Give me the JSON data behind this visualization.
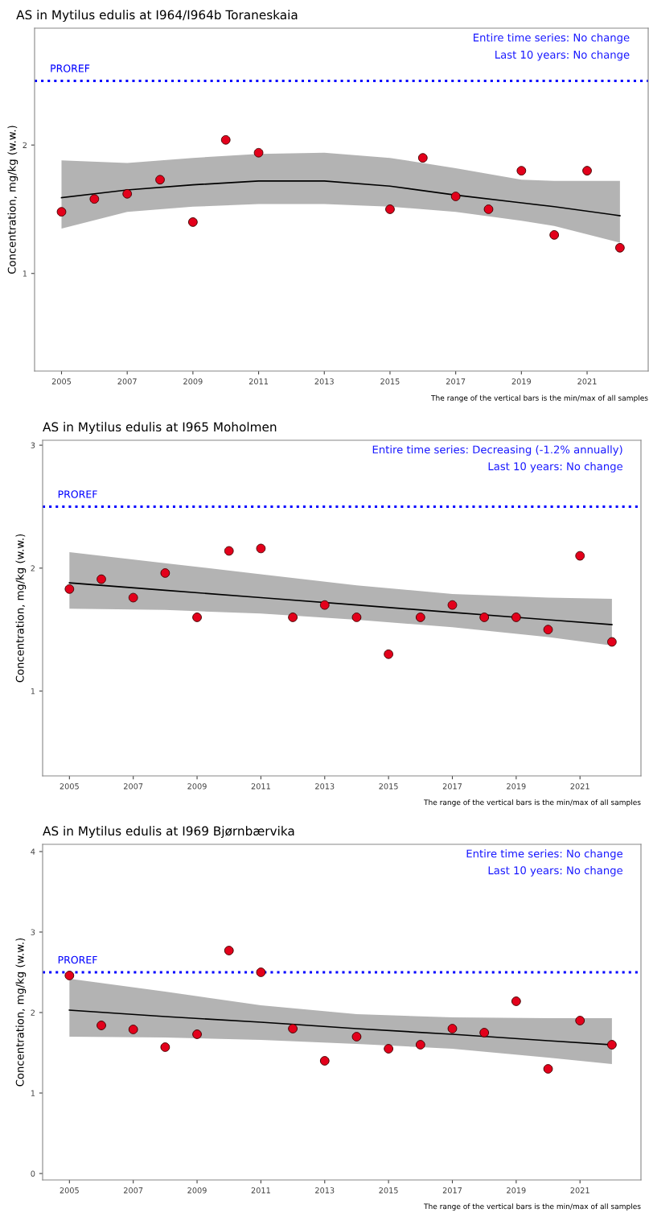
{
  "chart_data": [
    {
      "type": "scatter",
      "title": "AS in Mytilus edulis at I964/I964b Toraneskaia",
      "ylabel": "Concentration, mg/kg (w.w.)",
      "xlim": [
        2004.18,
        2022.86
      ],
      "xticks": [
        2005,
        2007,
        2009,
        2011,
        2013,
        2015,
        2017,
        2019,
        2021
      ],
      "ylim": [
        0.24,
        2.91
      ],
      "yticks": [
        1,
        2
      ],
      "grid": false,
      "legend": false,
      "annotations": [
        "Entire time series: No change",
        "Last 10 years: No change",
        "The range of the vertical bars is the min/max of all samples"
      ],
      "ref_lines": [
        {
          "axis": "y",
          "value": 2.5,
          "label": "PROREF",
          "color": "#0000ff",
          "line_style": "dotted"
        }
      ],
      "series": [
        {
          "marker": "circle",
          "color": "#e3001b",
          "x": [
            2005,
            2006,
            2007,
            2008,
            2009,
            2010,
            2011,
            2015,
            2016,
            2017,
            2018,
            2019,
            2020,
            2021,
            2022
          ],
          "values": [
            1.48,
            1.58,
            1.62,
            1.73,
            1.4,
            2.04,
            1.94,
            1.5,
            1.9,
            1.6,
            1.5,
            1.8,
            1.3,
            1.8,
            1.2
          ]
        },
        {
          "type": "line",
          "color": "#000000",
          "x": [
            2005,
            2007,
            2009,
            2011,
            2013,
            2015,
            2017,
            2019,
            2020,
            2022
          ],
          "values": [
            1.59,
            1.65,
            1.69,
            1.72,
            1.72,
            1.68,
            1.61,
            1.55,
            1.52,
            1.45
          ],
          "lower": [
            1.35,
            1.48,
            1.52,
            1.54,
            1.54,
            1.52,
            1.48,
            1.41,
            1.37,
            1.24
          ],
          "upper": [
            1.88,
            1.86,
            1.9,
            1.93,
            1.94,
            1.9,
            1.82,
            1.73,
            1.72,
            1.72
          ]
        }
      ]
    },
    {
      "type": "scatter",
      "title": "AS in Mytilus edulis at I965 Moholmen",
      "ylabel": "Concentration, mg/kg (w.w.)",
      "xlim": [
        2004.16,
        2022.91
      ],
      "xticks": [
        2005,
        2007,
        2009,
        2011,
        2013,
        2015,
        2017,
        2019,
        2021
      ],
      "ylim": [
        0.31,
        3.04
      ],
      "yticks": [
        1,
        2,
        3
      ],
      "grid": false,
      "legend": false,
      "annotations": [
        "Entire time series: Decreasing (-1.2% annually)",
        "Last 10 years: No change",
        "The range of the vertical bars is the min/max of all samples"
      ],
      "ref_lines": [
        {
          "axis": "y",
          "value": 2.5,
          "label": "PROREF",
          "color": "#0000ff",
          "line_style": "dotted"
        }
      ],
      "series": [
        {
          "marker": "circle",
          "color": "#e3001b",
          "x": [
            2005,
            2006,
            2007,
            2008,
            2009,
            2010,
            2011,
            2012,
            2013,
            2014,
            2015,
            2016,
            2017,
            2018,
            2019,
            2020,
            2021,
            2022
          ],
          "values": [
            1.83,
            1.91,
            1.76,
            1.96,
            1.6,
            2.14,
            2.16,
            1.6,
            1.7,
            1.6,
            1.3,
            1.6,
            1.7,
            1.6,
            1.6,
            1.5,
            2.1,
            1.4
          ]
        },
        {
          "type": "line",
          "color": "#000000",
          "x": [
            2005,
            2008,
            2011,
            2014,
            2017,
            2020,
            2022
          ],
          "values": [
            1.88,
            1.82,
            1.76,
            1.7,
            1.64,
            1.58,
            1.54
          ],
          "lower": [
            1.67,
            1.66,
            1.63,
            1.58,
            1.52,
            1.44,
            1.37
          ],
          "upper": [
            2.13,
            2.04,
            1.95,
            1.86,
            1.79,
            1.76,
            1.75
          ]
        }
      ]
    },
    {
      "type": "scatter",
      "title": "AS in Mytilus edulis at I969 Bjørnbærvika",
      "ylabel": "Concentration, mg/kg (w.w.)",
      "xlim": [
        2004.16,
        2022.91
      ],
      "xticks": [
        2005,
        2007,
        2009,
        2011,
        2013,
        2015,
        2017,
        2019,
        2021
      ],
      "ylim": [
        -0.08,
        4.09
      ],
      "yticks": [
        0,
        1,
        2,
        3,
        4
      ],
      "grid": false,
      "legend": false,
      "annotations": [
        "Entire time series: No change",
        "Last 10 years: No change",
        "The range of the vertical bars is the min/max of all samples"
      ],
      "ref_lines": [
        {
          "axis": "y",
          "value": 2.5,
          "label": "PROREF",
          "color": "#0000ff",
          "line_style": "dotted"
        }
      ],
      "series": [
        {
          "marker": "circle",
          "color": "#e3001b",
          "x": [
            2005,
            2006,
            2007,
            2008,
            2009,
            2010,
            2011,
            2012,
            2013,
            2014,
            2015,
            2016,
            2017,
            2018,
            2019,
            2020,
            2021,
            2022
          ],
          "values": [
            2.46,
            1.84,
            1.79,
            1.57,
            1.73,
            2.77,
            2.5,
            1.8,
            1.4,
            1.7,
            1.55,
            1.6,
            1.8,
            1.75,
            2.14,
            1.3,
            1.9,
            1.6
          ]
        },
        {
          "type": "line",
          "color": "#000000",
          "x": [
            2005,
            2008,
            2011,
            2014,
            2017,
            2020,
            2022
          ],
          "values": [
            2.03,
            1.95,
            1.88,
            1.8,
            1.73,
            1.65,
            1.6
          ],
          "lower": [
            1.7,
            1.69,
            1.66,
            1.61,
            1.55,
            1.44,
            1.36
          ],
          "upper": [
            2.42,
            2.26,
            2.09,
            1.98,
            1.94,
            1.93,
            1.93
          ]
        }
      ]
    }
  ]
}
